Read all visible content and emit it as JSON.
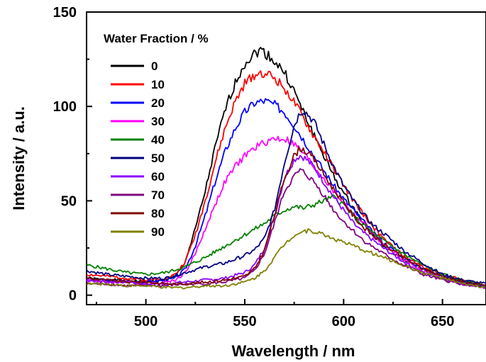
{
  "chart_data": {
    "type": "line",
    "xlabel": "Wavelength / nm",
    "ylabel": "Intensity / a.u.",
    "xlim": [
      470,
      672
    ],
    "ylim": [
      -5,
      150
    ],
    "xticks": [
      "500",
      "550",
      "600",
      "650"
    ],
    "yticks": [
      "0",
      "50",
      "100",
      "150"
    ],
    "legend_title": "Water Fraction / %",
    "legend_position": "top-left",
    "series": [
      {
        "name": "0",
        "color": "#000000",
        "x": [
          470,
          480,
          490,
          500,
          510,
          515,
          520,
          525,
          530,
          535,
          540,
          545,
          550,
          555,
          558,
          562,
          565,
          570,
          575,
          580,
          585,
          590,
          595,
          600,
          605,
          610,
          615,
          620,
          630,
          640,
          650,
          660,
          672
        ],
        "y": [
          9,
          8,
          8,
          7,
          8,
          10,
          18,
          35,
          55,
          78,
          98,
          112,
          123,
          128,
          130,
          127,
          124,
          118,
          108,
          96,
          85,
          74,
          63,
          54,
          46,
          39,
          32,
          26,
          19,
          14,
          10,
          7,
          5
        ]
      },
      {
        "name": "10",
        "color": "#ff0000",
        "x": [
          470,
          480,
          490,
          500,
          510,
          515,
          520,
          525,
          530,
          535,
          540,
          545,
          550,
          555,
          560,
          565,
          570,
          575,
          580,
          585,
          590,
          595,
          600,
          605,
          610,
          615,
          620,
          630,
          640,
          650,
          660,
          672
        ],
        "y": [
          11,
          10,
          9,
          8,
          9,
          11,
          18,
          32,
          50,
          70,
          88,
          102,
          112,
          117,
          118,
          115,
          110,
          102,
          93,
          84,
          76,
          67,
          58,
          50,
          43,
          36,
          30,
          21,
          15,
          11,
          8,
          5
        ]
      },
      {
        "name": "20",
        "color": "#0000ff",
        "x": [
          470,
          480,
          490,
          500,
          510,
          515,
          520,
          525,
          530,
          535,
          540,
          545,
          550,
          555,
          560,
          565,
          570,
          575,
          580,
          585,
          590,
          595,
          600,
          605,
          610,
          615,
          620,
          630,
          640,
          650,
          660,
          672
        ],
        "y": [
          8,
          8,
          7,
          7,
          8,
          9,
          14,
          26,
          42,
          60,
          76,
          88,
          97,
          102,
          103,
          101,
          97,
          90,
          82,
          74,
          66,
          58,
          51,
          45,
          39,
          33,
          28,
          20,
          14,
          10,
          7,
          5
        ]
      },
      {
        "name": "30",
        "color": "#ff00ff",
        "x": [
          470,
          480,
          490,
          500,
          510,
          515,
          520,
          525,
          530,
          535,
          540,
          545,
          550,
          555,
          560,
          565,
          570,
          575,
          580,
          585,
          590,
          595,
          600,
          605,
          610,
          615,
          620,
          630,
          640,
          650,
          660,
          672
        ],
        "y": [
          8,
          7,
          7,
          6,
          7,
          8,
          12,
          22,
          35,
          48,
          60,
          68,
          74,
          78,
          81,
          83,
          83,
          80,
          75,
          68,
          62,
          55,
          49,
          43,
          38,
          32,
          27,
          19,
          13,
          9,
          6,
          4
        ]
      },
      {
        "name": "40",
        "color": "#008000",
        "x": [
          470,
          480,
          490,
          500,
          510,
          520,
          530,
          540,
          550,
          560,
          565,
          570,
          575,
          580,
          585,
          590,
          595,
          600,
          605,
          610,
          620,
          630,
          640,
          650,
          660,
          672
        ],
        "y": [
          16,
          14,
          12,
          11,
          12,
          15,
          20,
          26,
          32,
          38,
          42,
          45,
          47,
          46,
          48,
          50,
          52,
          48,
          42,
          37,
          29,
          22,
          16,
          11,
          8,
          5
        ]
      },
      {
        "name": "50",
        "color": "#000080",
        "x": [
          470,
          480,
          490,
          500,
          510,
          520,
          530,
          540,
          550,
          555,
          560,
          565,
          570,
          575,
          578,
          580,
          585,
          590,
          595,
          600,
          605,
          610,
          615,
          620,
          630,
          640,
          650,
          660,
          672
        ],
        "y": [
          13,
          11,
          10,
          9,
          9,
          12,
          15,
          17,
          21,
          24,
          30,
          45,
          70,
          90,
          97,
          98,
          92,
          80,
          68,
          58,
          50,
          43,
          37,
          33,
          24,
          17,
          11,
          8,
          6
        ]
      },
      {
        "name": "60",
        "color": "#8b00ff",
        "x": [
          470,
          480,
          490,
          500,
          510,
          520,
          530,
          540,
          550,
          555,
          560,
          565,
          570,
          575,
          578,
          580,
          585,
          590,
          595,
          600,
          605,
          610,
          620,
          630,
          640,
          650,
          660,
          672
        ],
        "y": [
          8,
          7,
          7,
          6,
          6,
          7,
          8,
          9,
          12,
          16,
          25,
          42,
          62,
          72,
          74,
          73,
          68,
          60,
          52,
          45,
          38,
          33,
          25,
          18,
          12,
          9,
          6,
          4
        ]
      },
      {
        "name": "70",
        "color": "#800080",
        "x": [
          470,
          480,
          490,
          500,
          510,
          520,
          530,
          540,
          550,
          555,
          560,
          565,
          570,
          575,
          578,
          580,
          585,
          590,
          595,
          600,
          605,
          610,
          620,
          630,
          640,
          650,
          660,
          672
        ],
        "y": [
          6,
          6,
          5,
          5,
          5,
          6,
          6,
          7,
          9,
          13,
          22,
          38,
          55,
          63,
          66,
          65,
          60,
          53,
          45,
          39,
          34,
          29,
          22,
          16,
          11,
          8,
          6,
          4
        ]
      },
      {
        "name": "80",
        "color": "#800000",
        "x": [
          470,
          480,
          490,
          500,
          510,
          520,
          530,
          540,
          550,
          555,
          560,
          565,
          570,
          575,
          578,
          580,
          585,
          590,
          595,
          600,
          605,
          610,
          620,
          630,
          640,
          650,
          660,
          672
        ],
        "y": [
          9,
          8,
          7,
          7,
          6,
          6,
          7,
          8,
          10,
          14,
          24,
          42,
          62,
          74,
          78,
          77,
          72,
          64,
          56,
          49,
          42,
          36,
          27,
          20,
          14,
          10,
          7,
          5
        ]
      },
      {
        "name": "90",
        "color": "#808000",
        "x": [
          470,
          480,
          490,
          500,
          510,
          520,
          530,
          540,
          550,
          555,
          560,
          565,
          570,
          575,
          580,
          585,
          590,
          595,
          600,
          605,
          610,
          620,
          630,
          640,
          650,
          660,
          672
        ],
        "y": [
          6,
          6,
          5,
          5,
          4,
          4,
          5,
          5,
          7,
          9,
          13,
          20,
          27,
          32,
          34,
          34,
          32,
          30,
          28,
          26,
          24,
          20,
          16,
          12,
          9,
          6,
          4
        ]
      }
    ]
  }
}
